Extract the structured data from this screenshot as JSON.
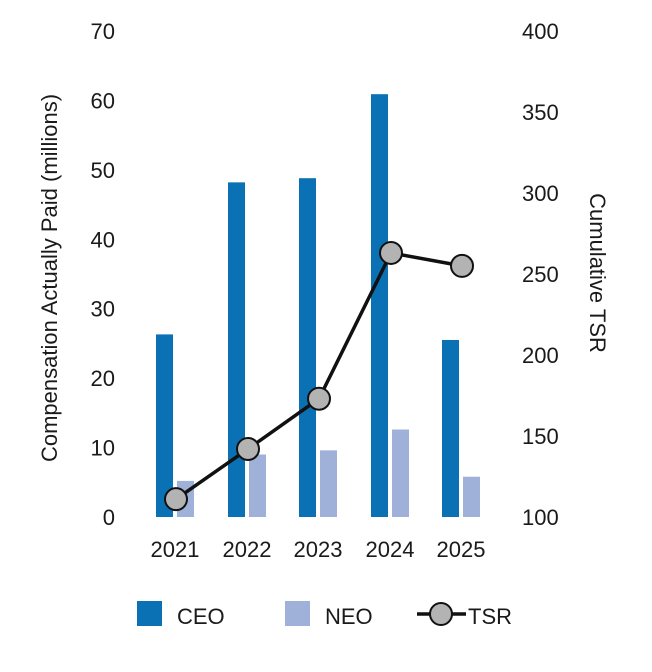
{
  "chart_data": {
    "type": "bar",
    "categories": [
      "2021",
      "2022",
      "2023",
      "2024",
      "2025"
    ],
    "series": [
      {
        "name": "CEO",
        "type": "bar",
        "axis": "left",
        "values": [
          26.3,
          48.2,
          48.8,
          60.9,
          25.5
        ]
      },
      {
        "name": "NEO",
        "type": "bar",
        "axis": "left",
        "values": [
          5.2,
          9.0,
          9.6,
          12.6,
          5.8
        ]
      },
      {
        "name": "TSR",
        "type": "line",
        "axis": "right",
        "values": [
          111,
          142,
          173,
          263,
          255
        ]
      }
    ],
    "ylabel": "Compensation Actually Paid (millions)",
    "y2label": "Cumulative TSR",
    "ylim": [
      0,
      70
    ],
    "y2lim": [
      100,
      400
    ],
    "yticks": [
      "0",
      "10",
      "20",
      "30",
      "40",
      "50",
      "60",
      "70"
    ],
    "y2ticks": [
      "100",
      "150",
      "200",
      "250",
      "300",
      "350",
      "400"
    ],
    "legend_position": "bottom"
  },
  "colors": {
    "ceo": "#0a72b4",
    "neo": "#9fb0d9",
    "tsr_line": "#111111",
    "tsr_marker": "#b3b3b3"
  }
}
